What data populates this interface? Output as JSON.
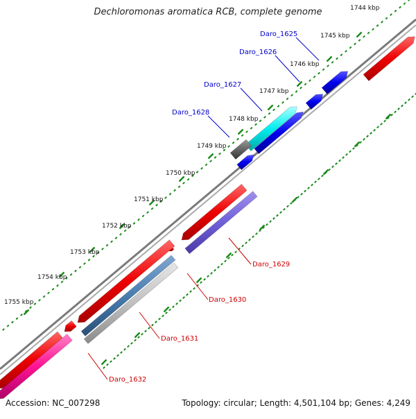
{
  "title": "Dechloromonas aromatica RCB, complete genome",
  "footer": {
    "accession": "Accession: NC_007298",
    "summary": "Topology: circular; Length: 4,501,104 bp; Genes: 4,249"
  },
  "colors": {
    "backbone": "#888888",
    "tick": "#1a8a1a",
    "label_forward": "#0000cc",
    "label_reverse": "#cc0000",
    "leader_forward": "#0000cc",
    "leader_reverse": "#cc0000"
  },
  "scale_labels": [
    "1744 kbp",
    "1745 kbp",
    "1746 kbp",
    "1747 kbp",
    "1748 kbp",
    "1749 kbp",
    "1750 kbp",
    "1751 kbp",
    "1752 kbp",
    "1753 kbp",
    "1754 kbp",
    "1755 kbp"
  ],
  "gene_labels_forward": [
    "Daro_1625",
    "Daro_1626",
    "Daro_1627",
    "Daro_1628"
  ],
  "gene_labels_reverse": [
    "Daro_1629",
    "Daro_1630",
    "Daro_1631",
    "Daro_1632"
  ]
}
